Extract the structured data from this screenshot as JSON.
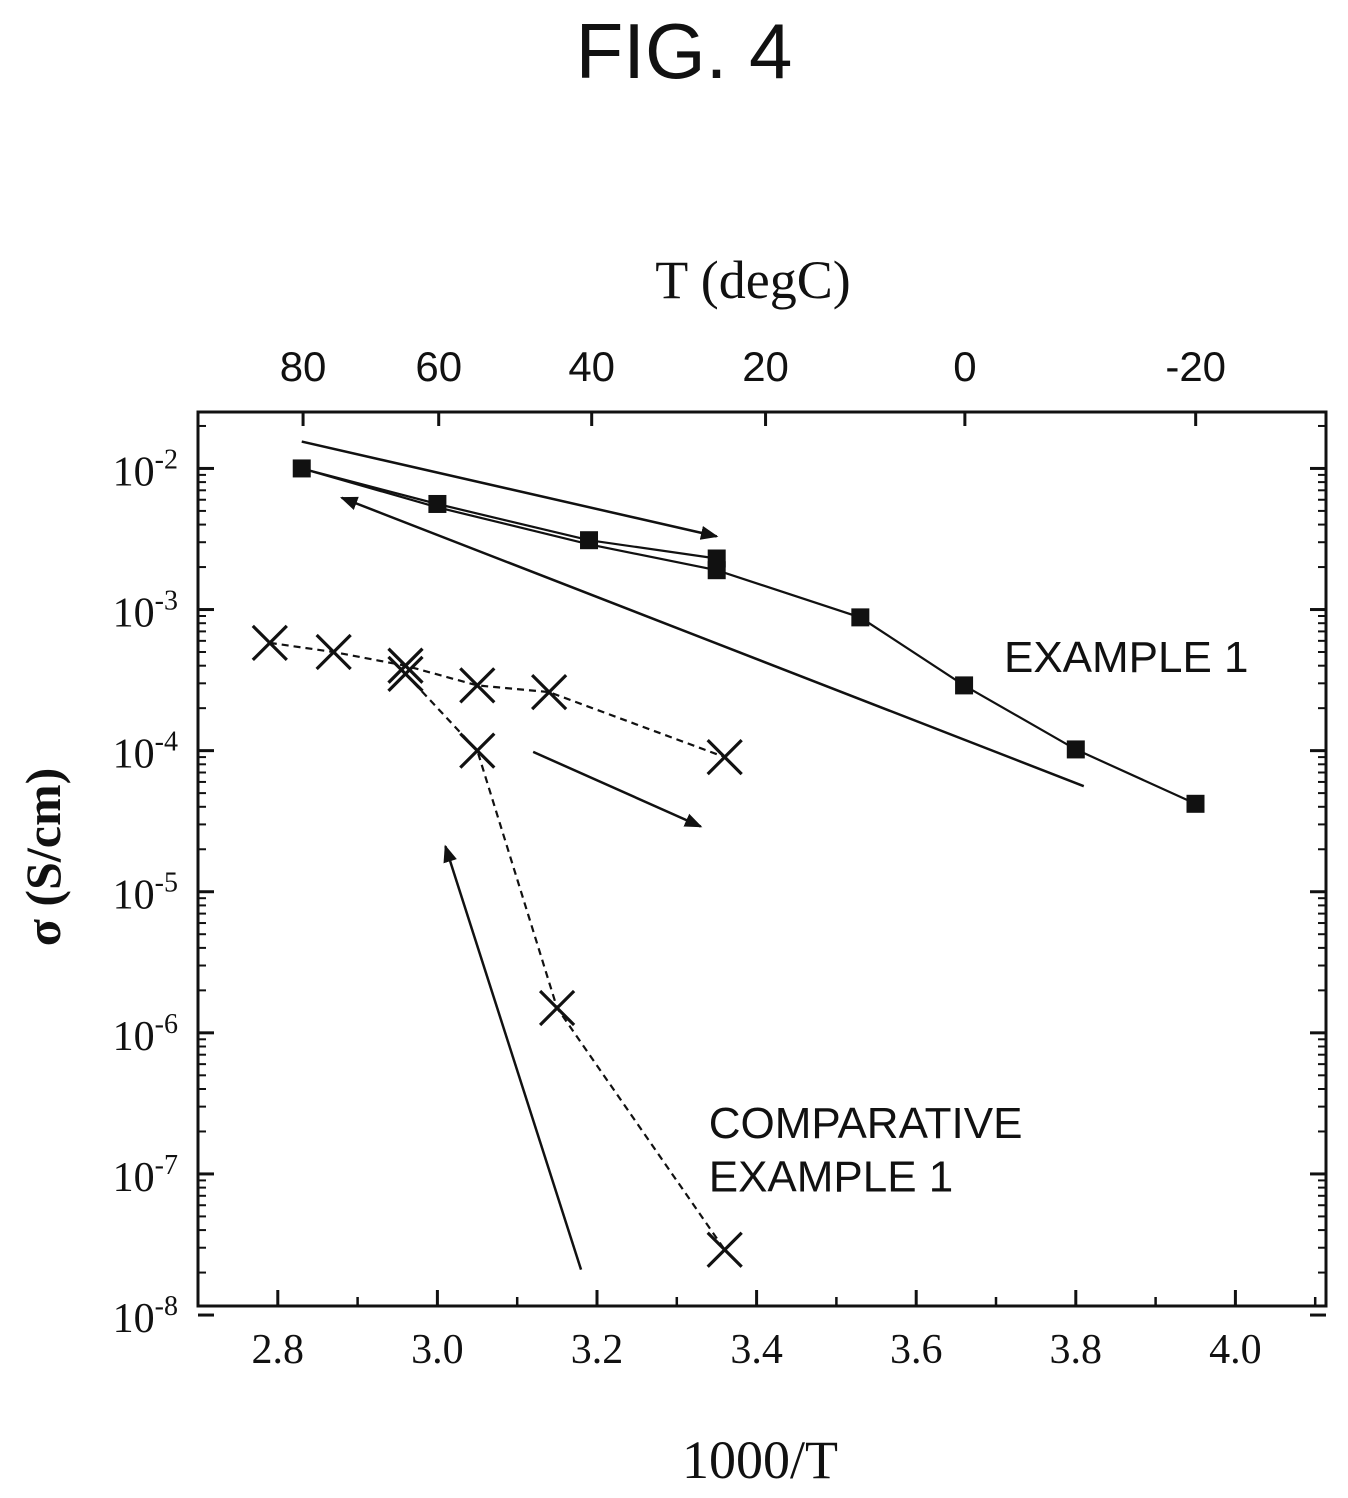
{
  "figure_title": "FIG. 4",
  "chart_data": {
    "type": "scatter",
    "title": "",
    "xlabel": "1000/T",
    "ylabel": "σ (S/cm)",
    "top_xlabel": "T (degC)",
    "xlim": [
      2.7,
      4.1
    ],
    "ylim": [
      1e-08,
      0.03
    ],
    "yscale": "log",
    "grid": false,
    "x_ticks": [
      "2.8",
      "3.0",
      "3.2",
      "3.4",
      "3.6",
      "3.8",
      "4.0"
    ],
    "x_tick_values": [
      2.8,
      3.0,
      3.2,
      3.4,
      3.6,
      3.8,
      4.0
    ],
    "top_ticks": [
      "80",
      "60",
      "40",
      "20",
      "0",
      "-20"
    ],
    "top_tick_values_celsius": [
      80,
      60,
      40,
      20,
      0,
      -20
    ],
    "y_ticks": [
      {
        "base": "10",
        "exp": "-2",
        "value": 0.01
      },
      {
        "base": "10",
        "exp": "-3",
        "value": 0.001
      },
      {
        "base": "10",
        "exp": "-4",
        "value": 0.0001
      },
      {
        "base": "10",
        "exp": "-5",
        "value": 1e-05
      },
      {
        "base": "10",
        "exp": "-6",
        "value": 1e-06
      },
      {
        "base": "10",
        "exp": "-7",
        "value": 1e-07
      },
      {
        "base": "10",
        "exp": "-8",
        "value": 1e-08
      }
    ],
    "series": [
      {
        "name": "EXAMPLE 1",
        "marker": "square",
        "line": "solid",
        "points": [
          {
            "x": 2.83,
            "y": 0.01
          },
          {
            "x": 3.0,
            "y": 0.0056
          },
          {
            "x": 3.19,
            "y": 0.0031
          },
          {
            "x": 3.35,
            "y": 0.0023
          },
          {
            "x": 3.35,
            "y": 0.0019
          },
          {
            "x": 3.53,
            "y": 0.00088
          },
          {
            "x": 3.66,
            "y": 0.00029
          },
          {
            "x": 3.8,
            "y": 0.000102
          },
          {
            "x": 3.95,
            "y": 4.2e-05
          }
        ],
        "heating_path": [
          {
            "x": 2.83,
            "y": 0.01
          },
          {
            "x": 3.0,
            "y": 0.0056
          },
          {
            "x": 3.19,
            "y": 0.0031
          },
          {
            "x": 3.35,
            "y": 0.0023
          }
        ],
        "cooling_path": [
          {
            "x": 2.83,
            "y": 0.01
          },
          {
            "x": 3.0,
            "y": 0.0053
          },
          {
            "x": 3.19,
            "y": 0.0029
          },
          {
            "x": 3.35,
            "y": 0.0019
          },
          {
            "x": 3.53,
            "y": 0.00088
          },
          {
            "x": 3.66,
            "y": 0.00029
          },
          {
            "x": 3.8,
            "y": 0.000102
          },
          {
            "x": 3.95,
            "y": 4.2e-05
          }
        ]
      },
      {
        "name": "COMPARATIVE EXAMPLE 1",
        "marker": "x",
        "line": "dashed",
        "points": [
          {
            "x": 2.79,
            "y": 0.00058
          },
          {
            "x": 2.87,
            "y": 0.0005
          },
          {
            "x": 2.96,
            "y": 0.0004
          },
          {
            "x": 2.96,
            "y": 0.00035
          },
          {
            "x": 3.05,
            "y": 0.00029
          },
          {
            "x": 3.14,
            "y": 0.00026
          },
          {
            "x": 3.36,
            "y": 9e-05
          },
          {
            "x": 3.05,
            "y": 0.0001
          },
          {
            "x": 3.15,
            "y": 1.5e-06
          },
          {
            "x": 3.36,
            "y": 2.9e-08
          }
        ],
        "path_a": [
          {
            "x": 2.79,
            "y": 0.00058
          },
          {
            "x": 2.87,
            "y": 0.0005
          },
          {
            "x": 2.96,
            "y": 0.0004
          },
          {
            "x": 3.05,
            "y": 0.00029
          },
          {
            "x": 3.14,
            "y": 0.00026
          },
          {
            "x": 3.36,
            "y": 9e-05
          }
        ],
        "path_b": [
          {
            "x": 2.96,
            "y": 0.00035
          },
          {
            "x": 3.05,
            "y": 0.0001
          },
          {
            "x": 3.15,
            "y": 1.5e-06
          },
          {
            "x": 3.36,
            "y": 2.9e-08
          }
        ]
      }
    ],
    "arrows": [
      {
        "from": {
          "x": 2.83,
          "y": 0.0155
        },
        "to": {
          "x": 3.35,
          "y": 0.0033
        }
      },
      {
        "from": {
          "x": 3.81,
          "y": 5.6e-05
        },
        "to": {
          "x": 2.88,
          "y": 0.0062
        }
      },
      {
        "from": {
          "x": 3.12,
          "y": 9.8e-05
        },
        "to": {
          "x": 3.33,
          "y": 2.9e-05
        }
      },
      {
        "from": {
          "x": 3.18,
          "y": 2.1e-08
        },
        "to": {
          "x": 3.01,
          "y": 2.1e-05
        }
      }
    ],
    "annotations": [
      {
        "text": "EXAMPLE 1",
        "x": 3.71,
        "y": 0.00036
      },
      {
        "text": "COMPARATIVE",
        "x": 3.34,
        "y": 1.8e-07
      },
      {
        "text": "EXAMPLE 1",
        "x": 3.34,
        "y": 7.5e-08
      }
    ]
  }
}
